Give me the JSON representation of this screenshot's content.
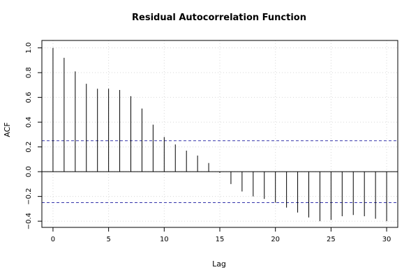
{
  "chart_data": {
    "type": "bar",
    "title": "Residual Autocorrelation Function",
    "xlabel": "Lag",
    "ylabel": "ACF",
    "x": [
      0,
      1,
      2,
      3,
      4,
      5,
      6,
      7,
      8,
      9,
      10,
      11,
      12,
      13,
      14,
      15,
      16,
      17,
      18,
      19,
      20,
      21,
      22,
      23,
      24,
      25,
      26,
      27,
      28,
      29,
      30
    ],
    "values": [
      1.0,
      0.92,
      0.81,
      0.71,
      0.67,
      0.67,
      0.66,
      0.61,
      0.51,
      0.38,
      0.28,
      0.22,
      0.17,
      0.13,
      0.07,
      -0.01,
      -0.1,
      -0.16,
      -0.2,
      -0.22,
      -0.25,
      -0.29,
      -0.33,
      -0.37,
      -0.4,
      -0.39,
      -0.36,
      -0.35,
      -0.36,
      -0.38,
      -0.4
    ],
    "confidence_bounds": [
      0.25,
      -0.25
    ],
    "xlim": [
      -1,
      31
    ],
    "ylim": [
      -0.45,
      1.06
    ],
    "xticks": [
      0,
      5,
      10,
      15,
      20,
      25,
      30
    ],
    "yticks": [
      -0.4,
      -0.2,
      0.0,
      0.2,
      0.4,
      0.6,
      0.8,
      1.0
    ],
    "ytick_labels": [
      "−0.4",
      "−0.2",
      "0.0",
      "0.2",
      "0.4",
      "0.6",
      "0.8",
      "1.0"
    ],
    "grid": true,
    "colors": {
      "lines": "#000000",
      "bounds": "#3333aa",
      "grid": "#d8d8d8"
    }
  }
}
